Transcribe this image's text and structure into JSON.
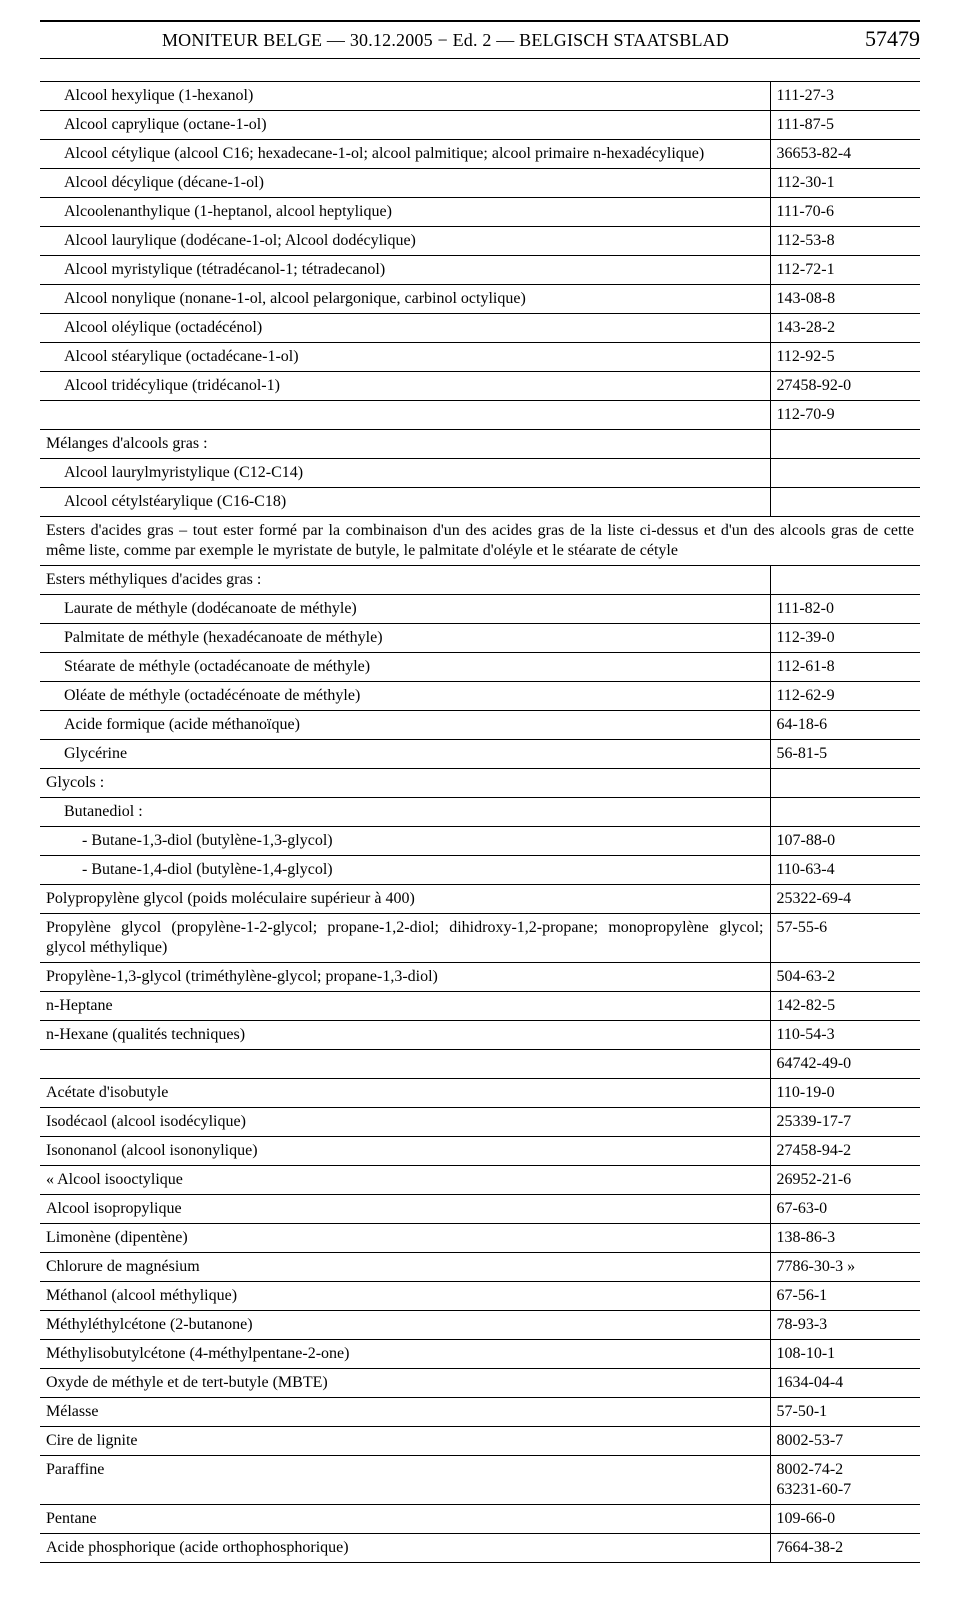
{
  "header": {
    "title": "MONITEUR BELGE — 30.12.2005 − Ed. 2 — BELGISCH STAATSBLAD",
    "page_number": "57479"
  },
  "rows": [
    {
      "indent": 1,
      "name": "Alcool hexylique (1-hexanol)",
      "cas": "111-27-3"
    },
    {
      "indent": 1,
      "name": "Alcool caprylique (octane-1-ol)",
      "cas": "111-87-5"
    },
    {
      "indent": 1,
      "name": "Alcool cétylique (alcool C16; hexadecane-1-ol; alcool palmitique; alcool primaire n-hexadécylique)",
      "cas": "36653-82-4"
    },
    {
      "indent": 1,
      "name": "Alcool décylique (décane-1-ol)",
      "cas": "112-30-1"
    },
    {
      "indent": 1,
      "name": "Alcoolenanthylique (1-heptanol, alcool heptylique)",
      "cas": "111-70-6"
    },
    {
      "indent": 1,
      "name": "Alcool laurylique (dodécane-1-ol; Alcool dodécylique)",
      "cas": "112-53-8"
    },
    {
      "indent": 1,
      "name": "Alcool myristylique (tétradécanol-1; tétradecanol)",
      "cas": "112-72-1"
    },
    {
      "indent": 1,
      "name": "Alcool nonylique (nonane-1-ol, alcool pelargonique, carbinol octylique)",
      "cas": "143-08-8"
    },
    {
      "indent": 1,
      "name": "Alcool oléylique (octadécénol)",
      "cas": "143-28-2"
    },
    {
      "indent": 1,
      "name": "Alcool stéarylique (octadécane-1-ol)",
      "cas": "112-92-5"
    },
    {
      "indent": 1,
      "name": "Alcool tridécylique (tridécanol-1)",
      "cas": "27458-92-0"
    },
    {
      "indent": 1,
      "name": "",
      "cas": "112-70-9"
    },
    {
      "indent": 0,
      "name": "Mélanges d'alcools gras :",
      "cas": ""
    },
    {
      "indent": 1,
      "name": "Alcool laurylmyristylique (C12-C14)",
      "cas": ""
    },
    {
      "indent": 1,
      "name": "Alcool cétylstéarylique (C16-C18)",
      "cas": ""
    },
    {
      "span": true,
      "indent": 0,
      "name": "Esters d'acides gras – tout ester formé par la combinaison d'un des acides gras de la liste ci-dessus et d'un des alcools gras de cette même liste, comme par exemple le myristate de butyle, le palmitate d'oléyle et le stéarate de cétyle"
    },
    {
      "indent": 0,
      "name": "Esters méthyliques d'acides gras :",
      "cas": ""
    },
    {
      "indent": 1,
      "name": "Laurate de méthyle (dodécanoate de méthyle)",
      "cas": "111-82-0"
    },
    {
      "indent": 1,
      "name": "Palmitate de méthyle (hexadécanoate de méthyle)",
      "cas": "112-39-0"
    },
    {
      "indent": 1,
      "name": "Stéarate de méthyle (octadécanoate de méthyle)",
      "cas": "112-61-8"
    },
    {
      "indent": 1,
      "name": "Oléate de méthyle (octadécénoate de méthyle)",
      "cas": "112-62-9"
    },
    {
      "indent": 1,
      "name": "Acide formique (acide méthanoïque)",
      "cas": "64-18-6"
    },
    {
      "indent": 1,
      "name": "Glycérine",
      "cas": "56-81-5"
    },
    {
      "indent": 0,
      "name": "Glycols :",
      "cas": ""
    },
    {
      "indent": 1,
      "name": "Butanediol :",
      "cas": ""
    },
    {
      "indent": 2,
      "name": "- Butane-1,3-diol (butylène-1,3-glycol)",
      "cas": "107-88-0"
    },
    {
      "indent": 2,
      "name": "- Butane-1,4-diol (butylène-1,4-glycol)",
      "cas": "110-63-4"
    },
    {
      "indent": 0,
      "name": "Polypropylène glycol (poids moléculaire supérieur à 400)",
      "cas": "25322-69-4"
    },
    {
      "indent": 0,
      "name": "Propylène glycol (propylène-1-2-glycol; propane-1,2-diol; dihidroxy-1,2-propane; monopropylène glycol; glycol méthylique)",
      "cas": "57-55-6"
    },
    {
      "indent": 0,
      "name": "Propylène-1,3-glycol (triméthylène-glycol; propane-1,3-diol)",
      "cas": "504-63-2"
    },
    {
      "indent": 0,
      "name": "n-Heptane",
      "cas": "142-82-5"
    },
    {
      "indent": 0,
      "name": "n-Hexane (qualités techniques)",
      "cas": "110-54-3"
    },
    {
      "indent": 0,
      "name": "",
      "cas": "64742-49-0"
    },
    {
      "indent": 0,
      "name": "Acétate d'isobutyle",
      "cas": "110-19-0"
    },
    {
      "indent": 0,
      "name": "Isodécaol (alcool isodécylique)",
      "cas": "25339-17-7"
    },
    {
      "indent": 0,
      "name": "Isononanol (alcool isononylique)",
      "cas": "27458-94-2"
    },
    {
      "indent": 0,
      "name": "« Alcool isooctylique",
      "cas": "26952-21-6"
    },
    {
      "indent": 0,
      "name": "Alcool isopropylique",
      "cas": "67-63-0"
    },
    {
      "indent": 0,
      "name": "Limonène (dipentène)",
      "cas": "138-86-3"
    },
    {
      "indent": 0,
      "name": "Chlorure de magnésium",
      "cas": "7786-30-3 »"
    },
    {
      "indent": 0,
      "name": "Méthanol (alcool méthylique)",
      "cas": "67-56-1"
    },
    {
      "indent": 0,
      "name": "Méthyléthylcétone (2-butanone)",
      "cas": "78-93-3"
    },
    {
      "indent": 0,
      "name": "Méthylisobutylcétone (4-méthylpentane-2-one)",
      "cas": "108-10-1"
    },
    {
      "indent": 0,
      "name": "Oxyde de méthyle et de tert-butyle (MBTE)",
      "cas": "1634-04-4"
    },
    {
      "indent": 0,
      "name": "Mélasse",
      "cas": "57-50-1"
    },
    {
      "indent": 0,
      "name": "Cire de lignite",
      "cas": "8002-53-7"
    },
    {
      "indent": 0,
      "name": "Paraffine",
      "cas": "8002-74-2\n63231-60-7"
    },
    {
      "indent": 0,
      "name": "Pentane",
      "cas": "109-66-0"
    },
    {
      "indent": 0,
      "name": "Acide phosphorique (acide orthophosphorique)",
      "cas": "7664-38-2"
    }
  ]
}
